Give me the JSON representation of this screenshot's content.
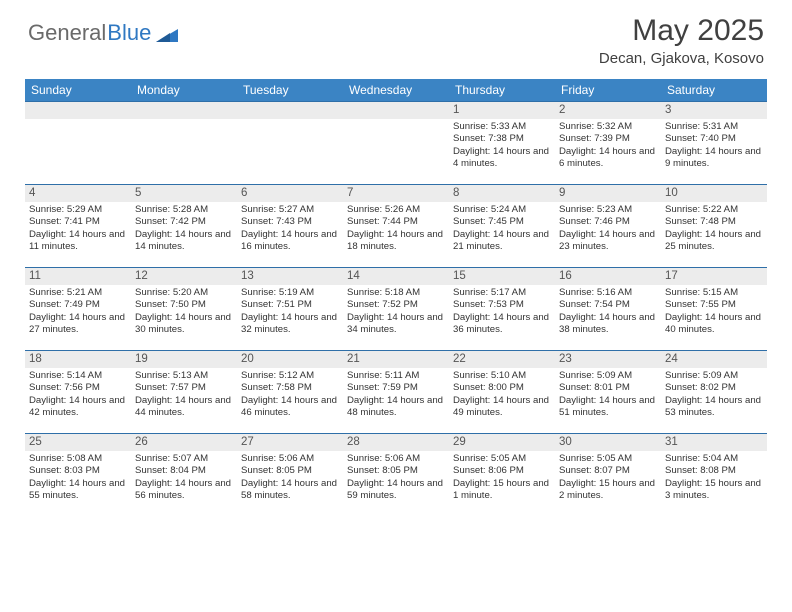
{
  "brand": {
    "part1": "General",
    "part2": "Blue"
  },
  "title": "May 2025",
  "location": "Decan, Gjakova, Kosovo",
  "colors": {
    "header_bg": "#3b84c4",
    "header_text": "#ffffff",
    "daynum_bg": "#ececec",
    "cell_border": "#2f6fa8",
    "text": "#333333",
    "title_color": "#404040"
  },
  "day_names": [
    "Sunday",
    "Monday",
    "Tuesday",
    "Wednesday",
    "Thursday",
    "Friday",
    "Saturday"
  ],
  "weeks": [
    [
      {
        "day": "",
        "sunrise": "",
        "sunset": "",
        "daylight": "",
        "empty": true
      },
      {
        "day": "",
        "sunrise": "",
        "sunset": "",
        "daylight": "",
        "empty": true
      },
      {
        "day": "",
        "sunrise": "",
        "sunset": "",
        "daylight": "",
        "empty": true
      },
      {
        "day": "",
        "sunrise": "",
        "sunset": "",
        "daylight": "",
        "empty": true
      },
      {
        "day": "1",
        "sunrise": "Sunrise: 5:33 AM",
        "sunset": "Sunset: 7:38 PM",
        "daylight": "Daylight: 14 hours and 4 minutes."
      },
      {
        "day": "2",
        "sunrise": "Sunrise: 5:32 AM",
        "sunset": "Sunset: 7:39 PM",
        "daylight": "Daylight: 14 hours and 6 minutes."
      },
      {
        "day": "3",
        "sunrise": "Sunrise: 5:31 AM",
        "sunset": "Sunset: 7:40 PM",
        "daylight": "Daylight: 14 hours and 9 minutes."
      }
    ],
    [
      {
        "day": "4",
        "sunrise": "Sunrise: 5:29 AM",
        "sunset": "Sunset: 7:41 PM",
        "daylight": "Daylight: 14 hours and 11 minutes."
      },
      {
        "day": "5",
        "sunrise": "Sunrise: 5:28 AM",
        "sunset": "Sunset: 7:42 PM",
        "daylight": "Daylight: 14 hours and 14 minutes."
      },
      {
        "day": "6",
        "sunrise": "Sunrise: 5:27 AM",
        "sunset": "Sunset: 7:43 PM",
        "daylight": "Daylight: 14 hours and 16 minutes."
      },
      {
        "day": "7",
        "sunrise": "Sunrise: 5:26 AM",
        "sunset": "Sunset: 7:44 PM",
        "daylight": "Daylight: 14 hours and 18 minutes."
      },
      {
        "day": "8",
        "sunrise": "Sunrise: 5:24 AM",
        "sunset": "Sunset: 7:45 PM",
        "daylight": "Daylight: 14 hours and 21 minutes."
      },
      {
        "day": "9",
        "sunrise": "Sunrise: 5:23 AM",
        "sunset": "Sunset: 7:46 PM",
        "daylight": "Daylight: 14 hours and 23 minutes."
      },
      {
        "day": "10",
        "sunrise": "Sunrise: 5:22 AM",
        "sunset": "Sunset: 7:48 PM",
        "daylight": "Daylight: 14 hours and 25 minutes."
      }
    ],
    [
      {
        "day": "11",
        "sunrise": "Sunrise: 5:21 AM",
        "sunset": "Sunset: 7:49 PM",
        "daylight": "Daylight: 14 hours and 27 minutes."
      },
      {
        "day": "12",
        "sunrise": "Sunrise: 5:20 AM",
        "sunset": "Sunset: 7:50 PM",
        "daylight": "Daylight: 14 hours and 30 minutes."
      },
      {
        "day": "13",
        "sunrise": "Sunrise: 5:19 AM",
        "sunset": "Sunset: 7:51 PM",
        "daylight": "Daylight: 14 hours and 32 minutes."
      },
      {
        "day": "14",
        "sunrise": "Sunrise: 5:18 AM",
        "sunset": "Sunset: 7:52 PM",
        "daylight": "Daylight: 14 hours and 34 minutes."
      },
      {
        "day": "15",
        "sunrise": "Sunrise: 5:17 AM",
        "sunset": "Sunset: 7:53 PM",
        "daylight": "Daylight: 14 hours and 36 minutes."
      },
      {
        "day": "16",
        "sunrise": "Sunrise: 5:16 AM",
        "sunset": "Sunset: 7:54 PM",
        "daylight": "Daylight: 14 hours and 38 minutes."
      },
      {
        "day": "17",
        "sunrise": "Sunrise: 5:15 AM",
        "sunset": "Sunset: 7:55 PM",
        "daylight": "Daylight: 14 hours and 40 minutes."
      }
    ],
    [
      {
        "day": "18",
        "sunrise": "Sunrise: 5:14 AM",
        "sunset": "Sunset: 7:56 PM",
        "daylight": "Daylight: 14 hours and 42 minutes."
      },
      {
        "day": "19",
        "sunrise": "Sunrise: 5:13 AM",
        "sunset": "Sunset: 7:57 PM",
        "daylight": "Daylight: 14 hours and 44 minutes."
      },
      {
        "day": "20",
        "sunrise": "Sunrise: 5:12 AM",
        "sunset": "Sunset: 7:58 PM",
        "daylight": "Daylight: 14 hours and 46 minutes."
      },
      {
        "day": "21",
        "sunrise": "Sunrise: 5:11 AM",
        "sunset": "Sunset: 7:59 PM",
        "daylight": "Daylight: 14 hours and 48 minutes."
      },
      {
        "day": "22",
        "sunrise": "Sunrise: 5:10 AM",
        "sunset": "Sunset: 8:00 PM",
        "daylight": "Daylight: 14 hours and 49 minutes."
      },
      {
        "day": "23",
        "sunrise": "Sunrise: 5:09 AM",
        "sunset": "Sunset: 8:01 PM",
        "daylight": "Daylight: 14 hours and 51 minutes."
      },
      {
        "day": "24",
        "sunrise": "Sunrise: 5:09 AM",
        "sunset": "Sunset: 8:02 PM",
        "daylight": "Daylight: 14 hours and 53 minutes."
      }
    ],
    [
      {
        "day": "25",
        "sunrise": "Sunrise: 5:08 AM",
        "sunset": "Sunset: 8:03 PM",
        "daylight": "Daylight: 14 hours and 55 minutes."
      },
      {
        "day": "26",
        "sunrise": "Sunrise: 5:07 AM",
        "sunset": "Sunset: 8:04 PM",
        "daylight": "Daylight: 14 hours and 56 minutes."
      },
      {
        "day": "27",
        "sunrise": "Sunrise: 5:06 AM",
        "sunset": "Sunset: 8:05 PM",
        "daylight": "Daylight: 14 hours and 58 minutes."
      },
      {
        "day": "28",
        "sunrise": "Sunrise: 5:06 AM",
        "sunset": "Sunset: 8:05 PM",
        "daylight": "Daylight: 14 hours and 59 minutes."
      },
      {
        "day": "29",
        "sunrise": "Sunrise: 5:05 AM",
        "sunset": "Sunset: 8:06 PM",
        "daylight": "Daylight: 15 hours and 1 minute."
      },
      {
        "day": "30",
        "sunrise": "Sunrise: 5:05 AM",
        "sunset": "Sunset: 8:07 PM",
        "daylight": "Daylight: 15 hours and 2 minutes."
      },
      {
        "day": "31",
        "sunrise": "Sunrise: 5:04 AM",
        "sunset": "Sunset: 8:08 PM",
        "daylight": "Daylight: 15 hours and 3 minutes."
      }
    ]
  ]
}
